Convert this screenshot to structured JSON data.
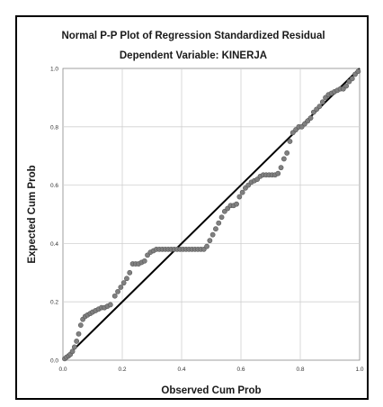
{
  "chart_data": {
    "type": "scatter",
    "title": "Normal P-P Plot of Regression Standardized Residual",
    "subtitle": "Dependent Variable: KINERJA",
    "xlabel": "Observed Cum Prob",
    "ylabel": "Expected Cum Prob",
    "xlim": [
      0,
      1
    ],
    "ylim": [
      0,
      1
    ],
    "xticks": [
      "0.0",
      "0.2",
      "0.4",
      "0.6",
      "0.8",
      "1.0"
    ],
    "yticks": [
      "0.0",
      "0.2",
      "0.4",
      "0.6",
      "0.8",
      "1.0"
    ],
    "grid": true,
    "reference_line": [
      [
        0,
        0
      ],
      [
        1,
        1
      ]
    ],
    "colors": {
      "points": "#808080",
      "line": "#000000",
      "grid": "#d0d0d0",
      "plot_bg": "#ffffff"
    },
    "points": [
      [
        0.006,
        0.005
      ],
      [
        0.012,
        0.01
      ],
      [
        0.019,
        0.015
      ],
      [
        0.025,
        0.02
      ],
      [
        0.032,
        0.03
      ],
      [
        0.039,
        0.045
      ],
      [
        0.046,
        0.065
      ],
      [
        0.053,
        0.09
      ],
      [
        0.06,
        0.12
      ],
      [
        0.067,
        0.14
      ],
      [
        0.075,
        0.15
      ],
      [
        0.083,
        0.155
      ],
      [
        0.092,
        0.16
      ],
      [
        0.1,
        0.165
      ],
      [
        0.11,
        0.17
      ],
      [
        0.12,
        0.175
      ],
      [
        0.13,
        0.18
      ],
      [
        0.14,
        0.18
      ],
      [
        0.15,
        0.185
      ],
      [
        0.16,
        0.19
      ],
      [
        0.175,
        0.22
      ],
      [
        0.185,
        0.235
      ],
      [
        0.195,
        0.25
      ],
      [
        0.205,
        0.265
      ],
      [
        0.215,
        0.28
      ],
      [
        0.225,
        0.3
      ],
      [
        0.235,
        0.33
      ],
      [
        0.245,
        0.33
      ],
      [
        0.255,
        0.33
      ],
      [
        0.265,
        0.335
      ],
      [
        0.275,
        0.34
      ],
      [
        0.285,
        0.36
      ],
      [
        0.295,
        0.37
      ],
      [
        0.305,
        0.375
      ],
      [
        0.315,
        0.38
      ],
      [
        0.325,
        0.38
      ],
      [
        0.335,
        0.38
      ],
      [
        0.345,
        0.38
      ],
      [
        0.355,
        0.38
      ],
      [
        0.365,
        0.38
      ],
      [
        0.375,
        0.38
      ],
      [
        0.385,
        0.38
      ],
      [
        0.395,
        0.38
      ],
      [
        0.405,
        0.38
      ],
      [
        0.415,
        0.38
      ],
      [
        0.425,
        0.38
      ],
      [
        0.435,
        0.38
      ],
      [
        0.445,
        0.38
      ],
      [
        0.455,
        0.38
      ],
      [
        0.465,
        0.38
      ],
      [
        0.475,
        0.38
      ],
      [
        0.485,
        0.39
      ],
      [
        0.495,
        0.41
      ],
      [
        0.505,
        0.43
      ],
      [
        0.515,
        0.45
      ],
      [
        0.525,
        0.47
      ],
      [
        0.535,
        0.49
      ],
      [
        0.545,
        0.51
      ],
      [
        0.555,
        0.52
      ],
      [
        0.565,
        0.53
      ],
      [
        0.575,
        0.53
      ],
      [
        0.585,
        0.535
      ],
      [
        0.595,
        0.56
      ],
      [
        0.605,
        0.575
      ],
      [
        0.615,
        0.59
      ],
      [
        0.625,
        0.6
      ],
      [
        0.635,
        0.61
      ],
      [
        0.645,
        0.615
      ],
      [
        0.655,
        0.62
      ],
      [
        0.665,
        0.63
      ],
      [
        0.675,
        0.635
      ],
      [
        0.685,
        0.635
      ],
      [
        0.695,
        0.635
      ],
      [
        0.705,
        0.635
      ],
      [
        0.715,
        0.635
      ],
      [
        0.725,
        0.64
      ],
      [
        0.735,
        0.66
      ],
      [
        0.745,
        0.69
      ],
      [
        0.755,
        0.71
      ],
      [
        0.765,
        0.75
      ],
      [
        0.775,
        0.78
      ],
      [
        0.785,
        0.79
      ],
      [
        0.795,
        0.8
      ],
      [
        0.805,
        0.8
      ],
      [
        0.815,
        0.81
      ],
      [
        0.825,
        0.82
      ],
      [
        0.835,
        0.83
      ],
      [
        0.845,
        0.85
      ],
      [
        0.855,
        0.86
      ],
      [
        0.865,
        0.87
      ],
      [
        0.875,
        0.885
      ],
      [
        0.885,
        0.9
      ],
      [
        0.895,
        0.91
      ],
      [
        0.905,
        0.915
      ],
      [
        0.915,
        0.92
      ],
      [
        0.925,
        0.925
      ],
      [
        0.935,
        0.93
      ],
      [
        0.945,
        0.93
      ],
      [
        0.955,
        0.94
      ],
      [
        0.965,
        0.955
      ],
      [
        0.975,
        0.965
      ],
      [
        0.985,
        0.98
      ],
      [
        0.995,
        0.99
      ]
    ]
  }
}
